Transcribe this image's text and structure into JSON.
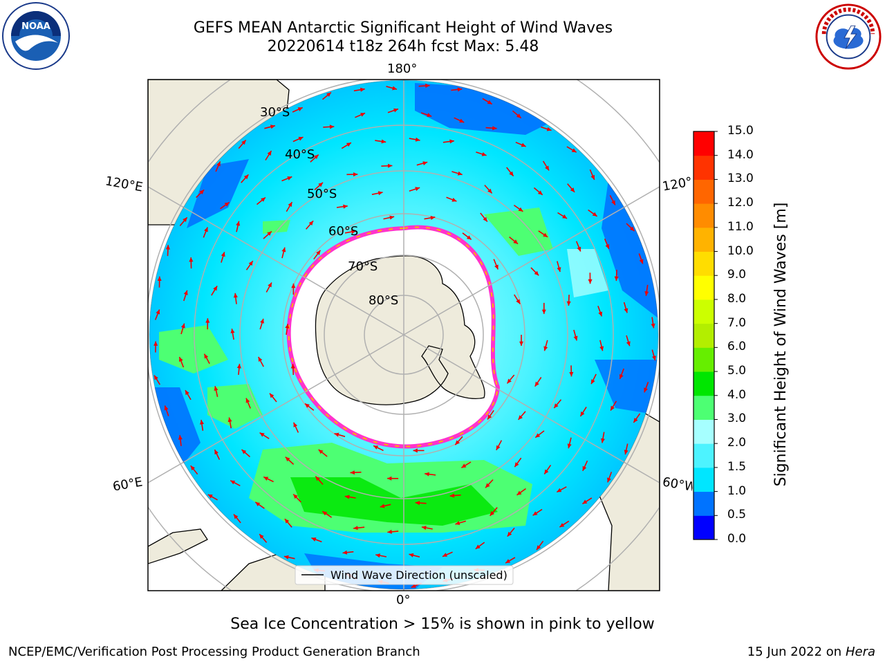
{
  "header": {
    "title_line1": "GEFS MEAN Antarctic Significant Height of Wind Waves",
    "title_line2": "20220614 t18z 264h fcst   Max: 5.48"
  },
  "logos": {
    "left": "noaa-logo",
    "right": "nws-logo"
  },
  "map": {
    "projection": "south-polar-stereographic",
    "longitude_labels": {
      "top": "180°",
      "bottom": "0°",
      "upper_left": "120°E",
      "upper_right": "120°W",
      "lower_left": "60°E",
      "lower_right": "60°W"
    },
    "latitude_labels": [
      "30°S",
      "40°S",
      "50°S",
      "60°S",
      "70°S",
      "80°S"
    ],
    "legend_label": "Wind Wave Direction (unscaled)",
    "colors": {
      "land": "#eeebdc",
      "sea_ice": "#ffffff",
      "arrows": "#ee0000"
    }
  },
  "colorbar": {
    "title": "Significant Height of Wind Waves [m]",
    "tick_labels": [
      "0.0",
      "0.5",
      "1.0",
      "1.5",
      "2.0",
      "3.0",
      "4.0",
      "5.0",
      "6.0",
      "7.0",
      "8.0",
      "9.0",
      "10.0",
      "11.0",
      "12.0",
      "13.0",
      "14.0",
      "15.0"
    ],
    "colors": [
      "#0000ff",
      "#0073ff",
      "#00e6ff",
      "#4df3ff",
      "#a6ffff",
      "#4dff73",
      "#00e600",
      "#66ee00",
      "#b3ee00",
      "#ccff00",
      "#ffff00",
      "#ffdd00",
      "#ffb300",
      "#ff8c00",
      "#ff6600",
      "#ff3300",
      "#ff0000"
    ]
  },
  "caption": "Sea Ice Concentration > 15% is shown in pink to yellow",
  "footer": {
    "left": "NCEP/EMC/Verification Post Processing Product Generation Branch",
    "right_prefix": "15 Jun 2022 on",
    "right_host": "Hera"
  }
}
